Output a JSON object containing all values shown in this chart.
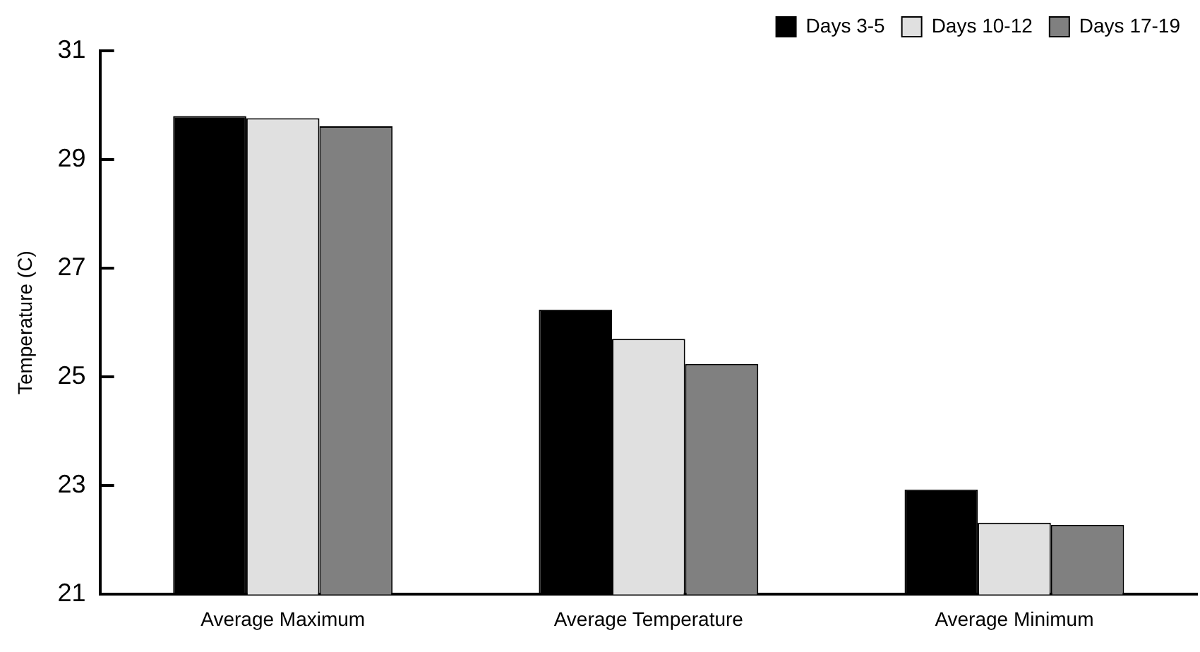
{
  "chart_data": {
    "type": "bar",
    "ylabel": "Temperature (C)",
    "categories": [
      "Average Maximum",
      "Average Temperature",
      "Average Minimum"
    ],
    "series": [
      {
        "name": "Days 3-5",
        "color": "#000000",
        "values": [
          29.8,
          26.24,
          22.93
        ]
      },
      {
        "name": "Days 10-12",
        "color": "#e0e0e0",
        "values": [
          29.76,
          25.7,
          22.32
        ]
      },
      {
        "name": "Days 17-19",
        "color": "#808080",
        "values": [
          29.61,
          25.24,
          22.28
        ]
      }
    ],
    "ylim": [
      21,
      31
    ],
    "yticks": [
      21,
      23,
      25,
      27,
      29,
      31
    ],
    "grid": false,
    "legend": "top right"
  }
}
